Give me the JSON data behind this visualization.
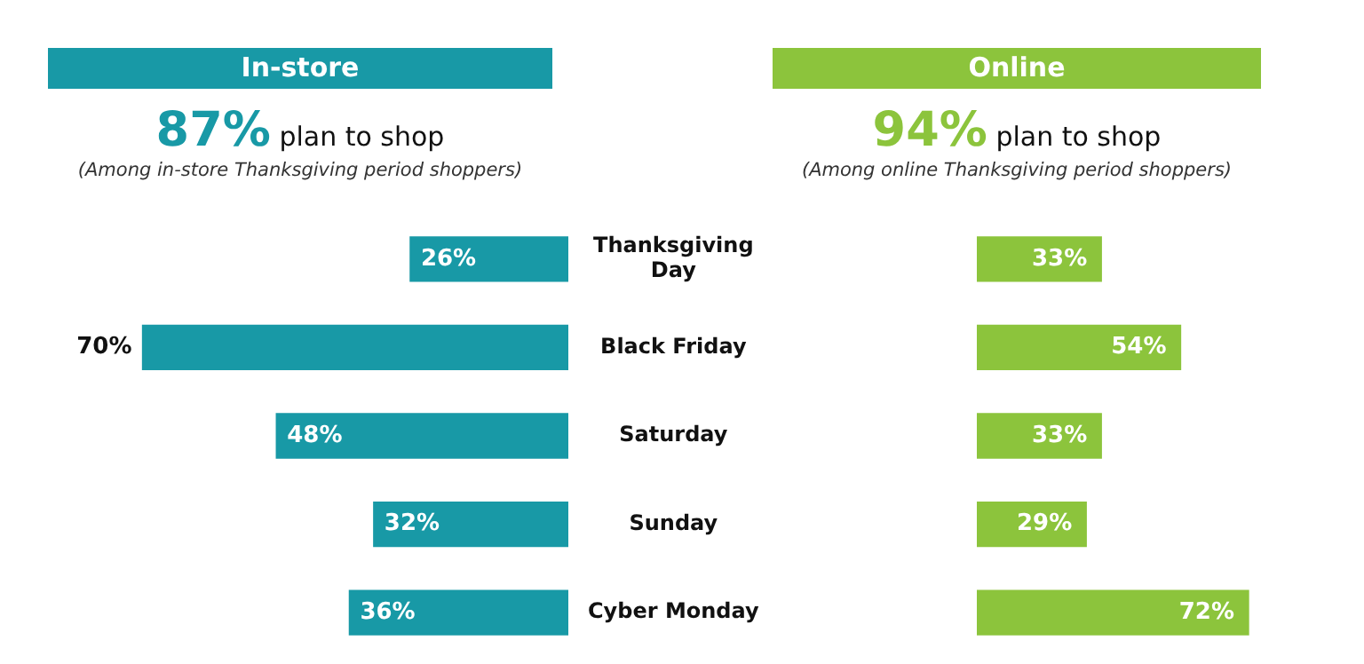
{
  "chart_data": [
    {
      "type": "bar",
      "orientation": "horizontal",
      "title": "In-store",
      "subtitle": "87% plan to shop",
      "annotations": [
        "(Among in-store Thanksgiving period shoppers)"
      ],
      "categories": [
        "Thanksgiving Day",
        "Black Friday",
        "Saturday",
        "Sunday",
        "Cyber Monday"
      ],
      "values": [
        26,
        70,
        48,
        32,
        36
      ],
      "value_labels": [
        "26%",
        "70%",
        "48%",
        "32%",
        "36%"
      ],
      "color": "#1899a6",
      "tick_labels": "y"
    },
    {
      "type": "bar",
      "orientation": "horizontal",
      "title": "Online",
      "subtitle": "94% plan to shop",
      "annotations": [
        "(Among online Thanksgiving period shoppers)"
      ],
      "categories": [
        null,
        null,
        null,
        null,
        null
      ],
      "values": [
        33,
        54,
        33,
        29,
        72
      ],
      "value_labels": [
        "33%",
        "54%",
        "33%",
        "29%",
        "72%"
      ],
      "color": "#8cc43c",
      "tick_labels": false
    }
  ]
}
